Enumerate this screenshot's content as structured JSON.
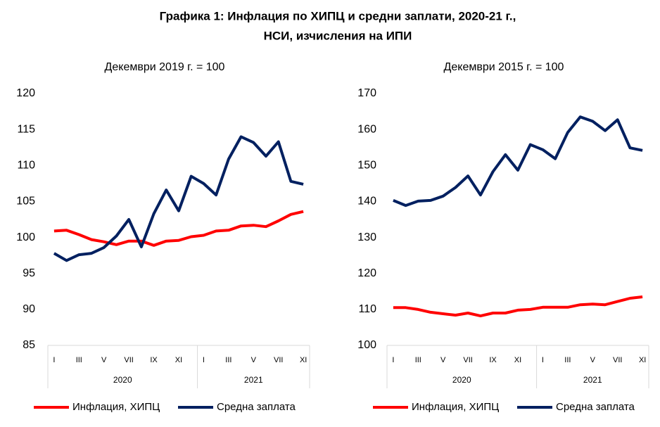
{
  "title": [
    "Графика 1: Инфлация по ХИПЦ и средни заплати, 2020-21 г.,",
    "НСИ, изчисления на ИПИ"
  ],
  "chart_data": [
    {
      "type": "line",
      "subtitle": "Декември 2019 г. = 100",
      "categories": [
        "I",
        null,
        "III",
        null,
        "V",
        null,
        "VII",
        null,
        "IX",
        null,
        "XI",
        null,
        "I",
        null,
        "III",
        null,
        "V",
        null,
        "VII",
        null,
        "XI"
      ],
      "groups": [
        "2020",
        "2021"
      ],
      "ylim": [
        85,
        120
      ],
      "yticks": [
        85,
        90,
        95,
        100,
        105,
        110,
        115,
        120
      ],
      "series": [
        {
          "name": "Инфлация, ХИПЦ",
          "color": "#ff0000",
          "values": [
            100.9,
            101.0,
            100.4,
            99.7,
            99.4,
            99.0,
            99.5,
            99.5,
            98.9,
            99.5,
            99.6,
            100.1,
            100.3,
            100.9,
            101.0,
            101.6,
            101.7,
            101.5,
            102.3,
            103.2,
            103.6
          ]
        },
        {
          "name": "Средна заплата",
          "color": "#002060",
          "values": [
            97.8,
            96.8,
            97.6,
            97.8,
            98.6,
            100.2,
            102.5,
            98.7,
            103.3,
            106.6,
            103.7,
            108.5,
            107.5,
            105.9,
            110.9,
            114.0,
            113.2,
            111.3,
            113.3,
            107.8,
            107.4
          ]
        }
      ]
    },
    {
      "type": "line",
      "subtitle": "Декември 2015 г. = 100",
      "categories": [
        "I",
        null,
        "III",
        null,
        "V",
        null,
        "VII",
        null,
        "IX",
        null,
        "XI",
        null,
        "I",
        null,
        "III",
        null,
        "V",
        null,
        "VII",
        null,
        "XI"
      ],
      "groups": [
        "2020",
        "2021"
      ],
      "ylim": [
        100,
        170
      ],
      "yticks": [
        100,
        110,
        120,
        130,
        140,
        150,
        160,
        170
      ],
      "series": [
        {
          "name": "Инфлация, ХИПЦ",
          "color": "#ff0000",
          "values": [
            110.5,
            110.5,
            110.0,
            109.2,
            108.8,
            108.4,
            109.0,
            108.2,
            109.0,
            109.0,
            109.8,
            110.0,
            110.6,
            110.6,
            110.6,
            111.3,
            111.5,
            111.3,
            112.2,
            113.1,
            113.5
          ]
        },
        {
          "name": "Средна заплата",
          "color": "#002060",
          "values": [
            140.3,
            138.9,
            140.1,
            140.3,
            141.5,
            143.9,
            147.1,
            141.8,
            148.3,
            153.0,
            148.7,
            155.8,
            154.4,
            151.9,
            159.2,
            163.5,
            162.3,
            159.7,
            162.7,
            154.9,
            154.2
          ]
        }
      ]
    }
  ]
}
